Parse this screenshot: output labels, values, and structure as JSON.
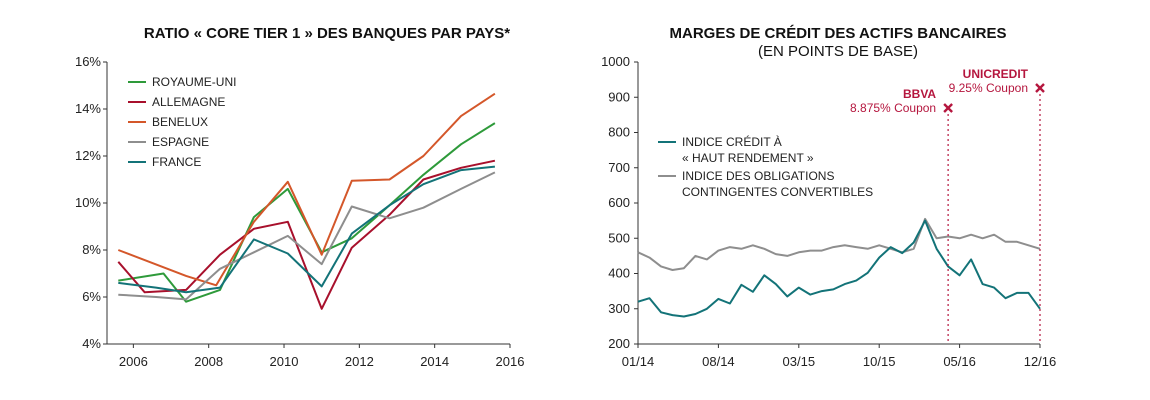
{
  "colors": {
    "green": "#2e9a3a",
    "darkred": "#a8102c",
    "orange": "#d4572a",
    "gray": "#8e8e8e",
    "teal": "#137378",
    "annot": "#b5163e"
  },
  "chart_data": [
    {
      "type": "line",
      "title": "RATIO « CORE TIER 1 » DES BANQUES PAR PAYS*",
      "xlim": [
        2005.3,
        2016
      ],
      "ylim": [
        4,
        16
      ],
      "xticks": [
        "2006",
        "2008",
        "2010",
        "2012",
        "2014",
        "2016"
      ],
      "yticks": [
        "4%",
        "6%",
        "8%",
        "10%",
        "12%",
        "14%",
        "16%"
      ],
      "grid": "none",
      "legend_position": "top-left",
      "series": [
        {
          "name": "ROYAUME-UNI",
          "color_key": "green",
          "x": [
            2005.6,
            2006.8,
            2007.4,
            2008.3,
            2009.2,
            2010.1,
            2011.0,
            2011.8,
            2012.8,
            2013.7,
            2014.7,
            2015.6
          ],
          "y": [
            6.7,
            7.0,
            5.8,
            6.3,
            9.4,
            10.6,
            7.9,
            8.5,
            9.9,
            11.2,
            12.5,
            13.4
          ]
        },
        {
          "name": "ALLEMAGNE",
          "color_key": "darkred",
          "x": [
            2005.6,
            2006.3,
            2007.4,
            2008.3,
            2009.2,
            2010.1,
            2011.0,
            2011.8,
            2012.8,
            2013.7,
            2014.7,
            2015.6
          ],
          "y": [
            7.5,
            6.2,
            6.3,
            7.8,
            8.9,
            9.2,
            5.5,
            8.1,
            9.5,
            11.0,
            11.5,
            11.8
          ]
        },
        {
          "name": "BENELUX",
          "color_key": "orange",
          "x": [
            2005.6,
            2007.4,
            2008.2,
            2009.2,
            2010.1,
            2011.0,
            2011.8,
            2012.8,
            2013.7,
            2014.7,
            2015.6
          ],
          "y": [
            8.0,
            6.9,
            6.5,
            9.2,
            10.9,
            7.8,
            10.95,
            11.0,
            12.0,
            13.7,
            14.65
          ]
        },
        {
          "name": "ESPAGNE",
          "color_key": "gray",
          "x": [
            2005.6,
            2006.6,
            2007.4,
            2008.3,
            2009.2,
            2010.1,
            2011.0,
            2011.8,
            2012.8,
            2013.7,
            2014.7,
            2015.6
          ],
          "y": [
            6.1,
            6.0,
            5.9,
            7.2,
            7.9,
            8.6,
            7.4,
            9.85,
            9.35,
            9.8,
            10.6,
            11.3
          ]
        },
        {
          "name": "FRANCE",
          "color_key": "teal",
          "x": [
            2005.6,
            2006.6,
            2007.4,
            2008.3,
            2009.2,
            2010.1,
            2011.0,
            2011.8,
            2012.8,
            2013.7,
            2014.7,
            2015.6
          ],
          "y": [
            6.6,
            6.4,
            6.2,
            6.4,
            8.45,
            7.85,
            6.45,
            8.7,
            9.9,
            10.8,
            11.4,
            11.55
          ]
        }
      ]
    },
    {
      "type": "line",
      "title": "MARGES DE CRÉDIT DES ACTIFS BANCAIRES",
      "subtitle": "(EN POINTS DE BASE)",
      "xlim": [
        "2014-01",
        "2016-12"
      ],
      "ylim": [
        200,
        1000
      ],
      "xticks": [
        "01/14",
        "08/14",
        "03/15",
        "10/15",
        "05/16",
        "12/16"
      ],
      "yticks": [
        "200",
        "300",
        "400",
        "500",
        "600",
        "700",
        "800",
        "900",
        "1000"
      ],
      "grid": "none",
      "legend_position": "middle-left",
      "series": [
        {
          "name": "INDICE CRÉDIT À « HAUT RENDEMENT »",
          "color_key": "teal",
          "x": [
            "2014-01",
            "2014-02",
            "2014-03",
            "2014-04",
            "2014-05",
            "2014-06",
            "2014-07",
            "2014-08",
            "2014-09",
            "2014-10",
            "2014-11",
            "2014-12",
            "2015-01",
            "2015-02",
            "2015-03",
            "2015-04",
            "2015-05",
            "2015-06",
            "2015-07",
            "2015-08",
            "2015-09",
            "2015-10",
            "2015-11",
            "2015-12",
            "2016-01",
            "2016-02",
            "2016-03",
            "2016-04",
            "2016-05",
            "2016-06",
            "2016-07",
            "2016-08",
            "2016-09",
            "2016-10",
            "2016-11",
            "2016-12"
          ],
          "y": [
            320,
            330,
            290,
            282,
            278,
            285,
            300,
            328,
            315,
            368,
            348,
            395,
            370,
            335,
            360,
            340,
            350,
            355,
            370,
            380,
            402,
            445,
            475,
            458,
            488,
            550,
            470,
            420,
            395,
            440,
            370,
            360,
            330,
            345,
            345,
            300
          ]
        },
        {
          "name": "INDICE DES OBLIGATIONS CONTINGENTES CONVERTIBLES",
          "color_key": "gray",
          "x": [
            "2014-01",
            "2014-02",
            "2014-03",
            "2014-04",
            "2014-05",
            "2014-06",
            "2014-07",
            "2014-08",
            "2014-09",
            "2014-10",
            "2014-11",
            "2014-12",
            "2015-01",
            "2015-02",
            "2015-03",
            "2015-04",
            "2015-05",
            "2015-06",
            "2015-07",
            "2015-08",
            "2015-09",
            "2015-10",
            "2015-11",
            "2015-12",
            "2016-01",
            "2016-02",
            "2016-03",
            "2016-04",
            "2016-05",
            "2016-06",
            "2016-07",
            "2016-08",
            "2016-09",
            "2016-10",
            "2016-11",
            "2016-12"
          ],
          "y": [
            460,
            445,
            420,
            410,
            415,
            450,
            440,
            465,
            475,
            470,
            480,
            470,
            455,
            450,
            460,
            465,
            465,
            475,
            480,
            475,
            470,
            480,
            470,
            460,
            470,
            555,
            500,
            505,
            500,
            510,
            500,
            510,
            490,
            490,
            480,
            470
          ]
        }
      ],
      "annotations": [
        {
          "name": "BBVA",
          "label": "8.875% Coupon",
          "x": "2016-04"
        },
        {
          "name": "UNICREDIT",
          "label": "9.25% Coupon",
          "x": "2016-12"
        }
      ]
    }
  ]
}
